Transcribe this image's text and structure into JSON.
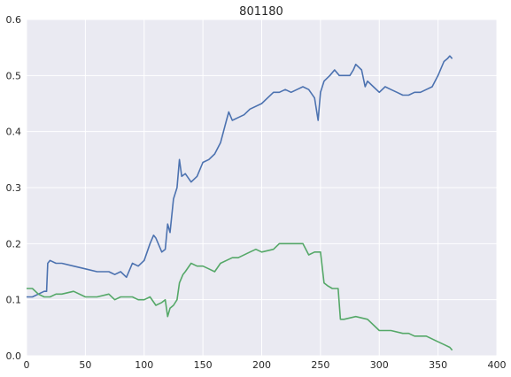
{
  "chart_data": {
    "type": "line",
    "title": "801180",
    "xlabel": "",
    "ylabel": "",
    "xlim": [
      0,
      400
    ],
    "ylim": [
      0,
      0.6
    ],
    "xticks": [
      "0",
      "50",
      "100",
      "150",
      "200",
      "250",
      "300",
      "350",
      "400"
    ],
    "yticks": [
      "0.0",
      "0.1",
      "0.2",
      "0.3",
      "0.4",
      "0.5",
      "0.6"
    ],
    "grid": true,
    "background": "#EAEAF2",
    "series": [
      {
        "color": "#4C72B0",
        "x": [
          0,
          5,
          10,
          15,
          17,
          18,
          20,
          25,
          30,
          40,
          50,
          60,
          70,
          75,
          80,
          85,
          90,
          95,
          100,
          105,
          108,
          110,
          115,
          118,
          120,
          122,
          125,
          128,
          130,
          132,
          135,
          140,
          145,
          150,
          155,
          160,
          165,
          170,
          172,
          175,
          180,
          185,
          190,
          200,
          205,
          210,
          215,
          220,
          225,
          230,
          235,
          240,
          245,
          248,
          250,
          253,
          258,
          262,
          266,
          270,
          275,
          278,
          280,
          285,
          288,
          290,
          295,
          300,
          305,
          310,
          315,
          320,
          325,
          330,
          335,
          340,
          345,
          350,
          355,
          358,
          360,
          362
        ],
        "y": [
          0.105,
          0.105,
          0.11,
          0.115,
          0.115,
          0.165,
          0.17,
          0.165,
          0.165,
          0.16,
          0.155,
          0.15,
          0.15,
          0.145,
          0.15,
          0.14,
          0.165,
          0.16,
          0.17,
          0.2,
          0.215,
          0.21,
          0.185,
          0.19,
          0.235,
          0.22,
          0.28,
          0.3,
          0.35,
          0.32,
          0.325,
          0.31,
          0.32,
          0.345,
          0.35,
          0.36,
          0.38,
          0.42,
          0.435,
          0.42,
          0.425,
          0.43,
          0.44,
          0.45,
          0.46,
          0.47,
          0.47,
          0.475,
          0.47,
          0.475,
          0.48,
          0.475,
          0.46,
          0.42,
          0.47,
          0.49,
          0.5,
          0.51,
          0.5,
          0.5,
          0.5,
          0.51,
          0.52,
          0.51,
          0.48,
          0.49,
          0.48,
          0.47,
          0.48,
          0.475,
          0.47,
          0.465,
          0.465,
          0.47,
          0.47,
          0.475,
          0.48,
          0.5,
          0.525,
          0.53,
          0.535,
          0.53
        ]
      },
      {
        "color": "#55A868",
        "x": [
          0,
          5,
          10,
          15,
          20,
          25,
          30,
          40,
          50,
          60,
          70,
          75,
          80,
          85,
          90,
          95,
          100,
          105,
          110,
          115,
          118,
          120,
          122,
          125,
          128,
          130,
          133,
          135,
          140,
          145,
          150,
          155,
          160,
          165,
          170,
          175,
          180,
          190,
          195,
          200,
          210,
          215,
          220,
          230,
          235,
          240,
          245,
          250,
          253,
          256,
          260,
          265,
          267,
          270,
          280,
          290,
          300,
          310,
          320,
          325,
          330,
          335,
          340,
          350,
          355,
          360,
          362
        ],
        "y": [
          0.12,
          0.12,
          0.11,
          0.105,
          0.105,
          0.11,
          0.11,
          0.115,
          0.105,
          0.105,
          0.11,
          0.1,
          0.105,
          0.105,
          0.105,
          0.1,
          0.1,
          0.105,
          0.09,
          0.095,
          0.1,
          0.07,
          0.085,
          0.09,
          0.1,
          0.13,
          0.145,
          0.15,
          0.165,
          0.16,
          0.16,
          0.155,
          0.15,
          0.165,
          0.17,
          0.175,
          0.175,
          0.185,
          0.19,
          0.185,
          0.19,
          0.2,
          0.2,
          0.2,
          0.2,
          0.18,
          0.185,
          0.185,
          0.13,
          0.125,
          0.12,
          0.12,
          0.065,
          0.065,
          0.07,
          0.065,
          0.045,
          0.045,
          0.04,
          0.04,
          0.035,
          0.035,
          0.035,
          0.025,
          0.02,
          0.015,
          0.01
        ]
      }
    ]
  }
}
